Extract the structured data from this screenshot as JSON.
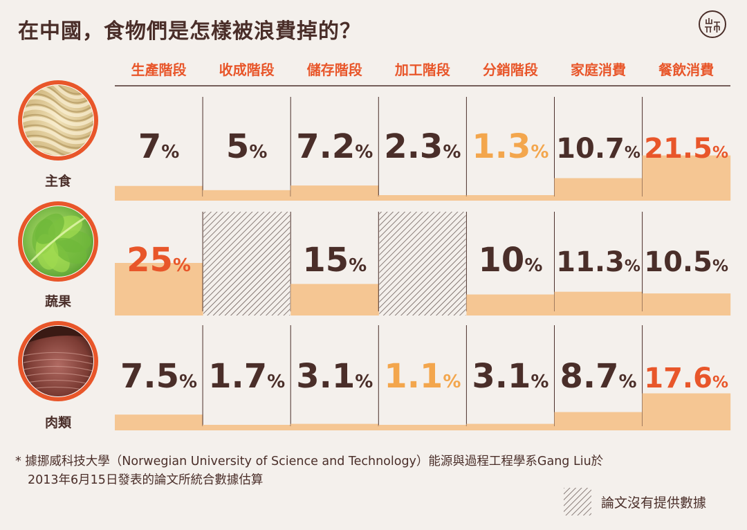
{
  "title": "在中國，食物們是怎樣被浪費掉的？",
  "footnote": {
    "line1": "* 據挪威科技大學（Norwegian University of Science and Technology）能源與過程工程學系Gang Liu於",
    "line2": "2013年6月15日發表的論文所統合數據估算"
  },
  "legend": {
    "no_data_label": "論文沒有提供數據",
    "no_data_pattern": "diagonal-hatch"
  },
  "logo_icon": "duan-logo-icon",
  "colors": {
    "background": "#f4f0ec",
    "text_dark": "#4a2e29",
    "stage_label": "#e8562a",
    "highlight_max": "#e8562a",
    "highlight_min": "#f3a64d",
    "bar_fill": "#f5c693",
    "divider": "#4a2e29",
    "photo_ring": "#e8562a"
  },
  "chart_data": {
    "type": "table",
    "unit": "%",
    "columns": [
      "生產階段",
      "收成階段",
      "儲存階段",
      "加工階段",
      "分銷階段",
      "家庭消費",
      "餐飲消費"
    ],
    "rows": [
      {
        "name": "主食",
        "icon": "noodles-photo-icon",
        "values": [
          7,
          5,
          7.2,
          2.3,
          1.3,
          10.7,
          21.5
        ],
        "labels": [
          "7",
          "5",
          "7.2",
          "2.3",
          "1.3",
          "10.7",
          "21.5"
        ],
        "highlight": [
          "none",
          "none",
          "none",
          "none",
          "min",
          "none",
          "max"
        ]
      },
      {
        "name": "蔬果",
        "icon": "lettuce-photo-icon",
        "values": [
          25,
          null,
          15,
          null,
          10,
          11.3,
          10.5
        ],
        "labels": [
          "25",
          "",
          "15",
          "",
          "10",
          "11.3",
          "10.5"
        ],
        "highlight": [
          "max",
          "none",
          "none",
          "none",
          "none",
          "none",
          "none"
        ]
      },
      {
        "name": "肉類",
        "icon": "meat-photo-icon",
        "values": [
          7.5,
          1.7,
          3.1,
          1.1,
          3.1,
          8.7,
          17.6
        ],
        "labels": [
          "7.5",
          "1.7",
          "3.1",
          "1.1",
          "3.1",
          "8.7",
          "17.6"
        ],
        "highlight": [
          "none",
          "none",
          "none",
          "min",
          "none",
          "none",
          "max"
        ]
      }
    ]
  }
}
